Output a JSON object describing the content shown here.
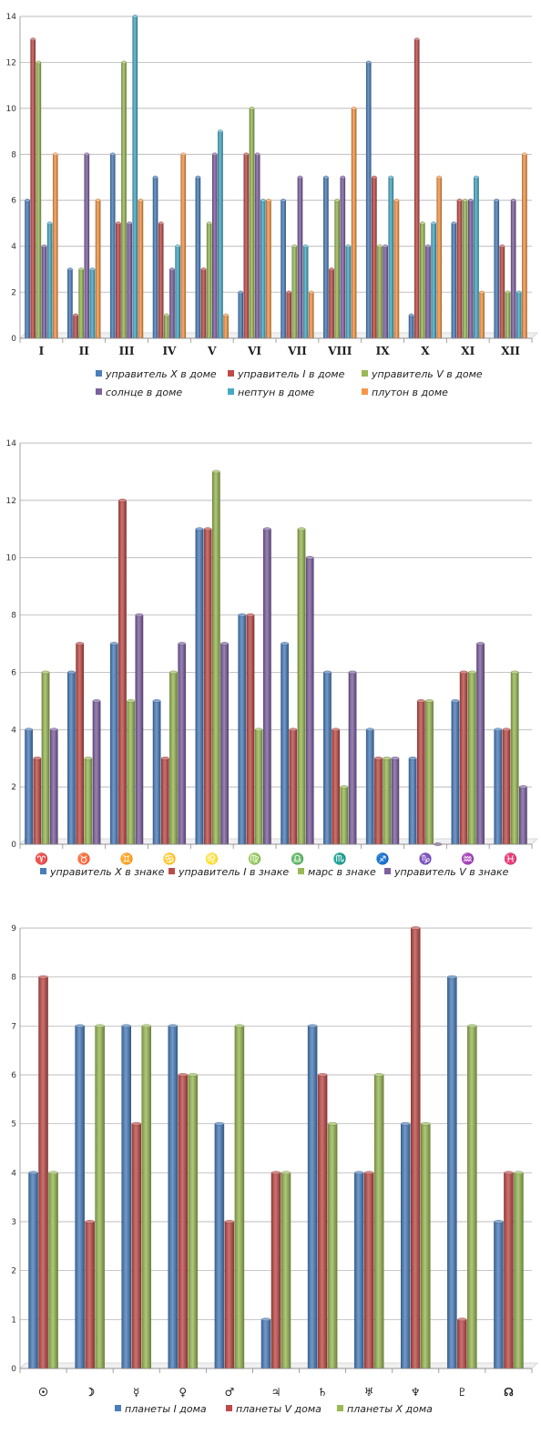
{
  "chart_data": [
    {
      "type": "bar",
      "categories": [
        "I",
        "II",
        "III",
        "IV",
        "V",
        "VI",
        "VII",
        "VIII",
        "IX",
        "X",
        "XI",
        "XII"
      ],
      "ylim": [
        0,
        14
      ],
      "yticks": [
        0,
        2,
        4,
        6,
        8,
        10,
        12,
        14
      ],
      "grid": true,
      "legend_position": "bottom",
      "series": [
        {
          "name": "управитель X в доме",
          "color": "#4a7ebb",
          "values": [
            6,
            3,
            8,
            7,
            7,
            2,
            6,
            7,
            12,
            1,
            5,
            6
          ]
        },
        {
          "name": "управитель I в доме",
          "color": "#be4b48",
          "values": [
            13,
            1,
            5,
            5,
            3,
            8,
            2,
            3,
            7,
            13,
            6,
            4
          ]
        },
        {
          "name": "управитель V в доме",
          "color": "#98b954",
          "values": [
            12,
            3,
            12,
            1,
            5,
            10,
            4,
            6,
            4,
            5,
            6,
            2
          ]
        },
        {
          "name": "солнце в доме",
          "color": "#7d60a0",
          "values": [
            4,
            8,
            5,
            3,
            8,
            8,
            7,
            7,
            4,
            4,
            6,
            6
          ]
        },
        {
          "name": "нептун в доме",
          "color": "#46aac5",
          "values": [
            5,
            3,
            14,
            4,
            9,
            6,
            4,
            4,
            7,
            5,
            7,
            2
          ]
        },
        {
          "name": "плутон в доме",
          "color": "#f79646",
          "values": [
            8,
            6,
            6,
            8,
            1,
            6,
            2,
            10,
            6,
            7,
            2,
            8
          ]
        }
      ]
    },
    {
      "type": "bar",
      "categories": [
        "♈",
        "♉",
        "♊",
        "♋",
        "♌",
        "♍",
        "♎",
        "♏",
        "♐",
        "♑",
        "♒",
        "♓"
      ],
      "ylim": [
        0,
        14
      ],
      "yticks": [
        0,
        2,
        4,
        6,
        8,
        10,
        12,
        14
      ],
      "grid": true,
      "legend_position": "bottom",
      "series": [
        {
          "name": "управитель X в знаке",
          "color": "#4a7ebb",
          "values": [
            4,
            6,
            7,
            5,
            11,
            8,
            7,
            6,
            4,
            3,
            5,
            4
          ]
        },
        {
          "name": "управитель I в знаке",
          "color": "#be4b48",
          "values": [
            3,
            7,
            12,
            3,
            11,
            8,
            4,
            4,
            3,
            5,
            6,
            4
          ]
        },
        {
          "name": "марс в знаке",
          "color": "#98b954",
          "values": [
            6,
            3,
            5,
            6,
            13,
            4,
            11,
            2,
            3,
            5,
            6,
            6
          ]
        },
        {
          "name": "управитель V в знаке",
          "color": "#7d60a0",
          "values": [
            4,
            5,
            8,
            7,
            7,
            11,
            10,
            6,
            3,
            0,
            7,
            2
          ]
        }
      ]
    },
    {
      "type": "bar",
      "categories": [
        "☉",
        "☽",
        "☿",
        "♀",
        "♂",
        "♃",
        "♄",
        "♅",
        "♆",
        "♇",
        "☊"
      ],
      "ylim": [
        0,
        9
      ],
      "yticks": [
        0,
        1,
        2,
        3,
        4,
        5,
        6,
        7,
        8,
        9
      ],
      "grid": true,
      "legend_position": "bottom",
      "series": [
        {
          "name": "планеты I дома",
          "color": "#4a7ebb",
          "values": [
            4,
            7,
            7,
            7,
            5,
            1,
            7,
            4,
            5,
            8,
            3
          ]
        },
        {
          "name": "планеты V дома",
          "color": "#be4b48",
          "values": [
            8,
            3,
            5,
            6,
            3,
            4,
            6,
            4,
            9,
            1,
            4
          ]
        },
        {
          "name": "планеты X дома",
          "color": "#98b954",
          "values": [
            4,
            7,
            7,
            6,
            7,
            4,
            5,
            6,
            5,
            7,
            4
          ]
        }
      ]
    }
  ]
}
